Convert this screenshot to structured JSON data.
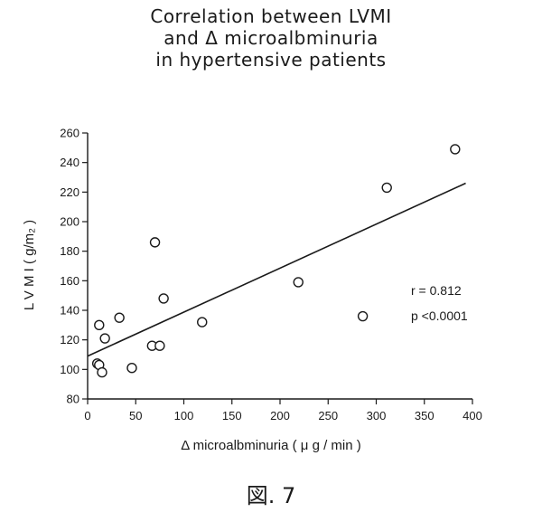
{
  "chart_data": {
    "type": "scatter",
    "title_lines": [
      "Correlation between LVMI",
      "and Δ microalbminuria",
      "in hypertensive patients"
    ],
    "xlabel": "Δ  microalbminuria  ( μ g / min )",
    "ylabel": "L V M I ( g/m₂ )",
    "xlim": [
      0,
      400
    ],
    "ylim": [
      80,
      260
    ],
    "x_ticks": [
      0,
      50,
      100,
      150,
      200,
      250,
      300,
      350,
      400
    ],
    "y_ticks": [
      80,
      100,
      120,
      140,
      160,
      180,
      200,
      220,
      240,
      260
    ],
    "points": [
      {
        "x": 12,
        "y": 130
      },
      {
        "x": 10,
        "y": 104
      },
      {
        "x": 12,
        "y": 103
      },
      {
        "x": 15,
        "y": 98
      },
      {
        "x": 18,
        "y": 121
      },
      {
        "x": 33,
        "y": 135
      },
      {
        "x": 46,
        "y": 101
      },
      {
        "x": 67,
        "y": 116
      },
      {
        "x": 70,
        "y": 186
      },
      {
        "x": 75,
        "y": 116
      },
      {
        "x": 79,
        "y": 148
      },
      {
        "x": 119,
        "y": 132
      },
      {
        "x": 219,
        "y": 159
      },
      {
        "x": 286,
        "y": 136
      },
      {
        "x": 311,
        "y": 223
      },
      {
        "x": 382,
        "y": 249
      }
    ],
    "regression": {
      "x": [
        0,
        393
      ],
      "y": [
        109,
        226
      ]
    },
    "annotations": [
      "r = 0.812",
      "p <0.0001"
    ],
    "marker": "open-circle",
    "grid": false,
    "legend": "none"
  },
  "caption": "図. 7"
}
